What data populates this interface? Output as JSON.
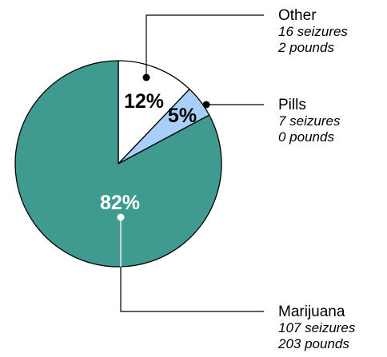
{
  "chart_data": {
    "type": "pie",
    "title": "",
    "slices": [
      {
        "label": "Other",
        "percent": 12,
        "percent_label": "12%",
        "seizures": "16 seizures",
        "pounds": "2 pounds",
        "color": "#ffffff",
        "text_color": "#000000"
      },
      {
        "label": "Pills",
        "percent": 5,
        "percent_label": "5%",
        "seizures": "7 seizures",
        "pounds": "0 pounds",
        "color": "#a8cff7",
        "text_color": "#000000"
      },
      {
        "label": "Marijuana",
        "percent": 82,
        "percent_label": "82%",
        "seizures": "107 seizures",
        "pounds": "203 pounds",
        "color": "#3f9b8f",
        "text_color": "#ffffff"
      }
    ]
  }
}
